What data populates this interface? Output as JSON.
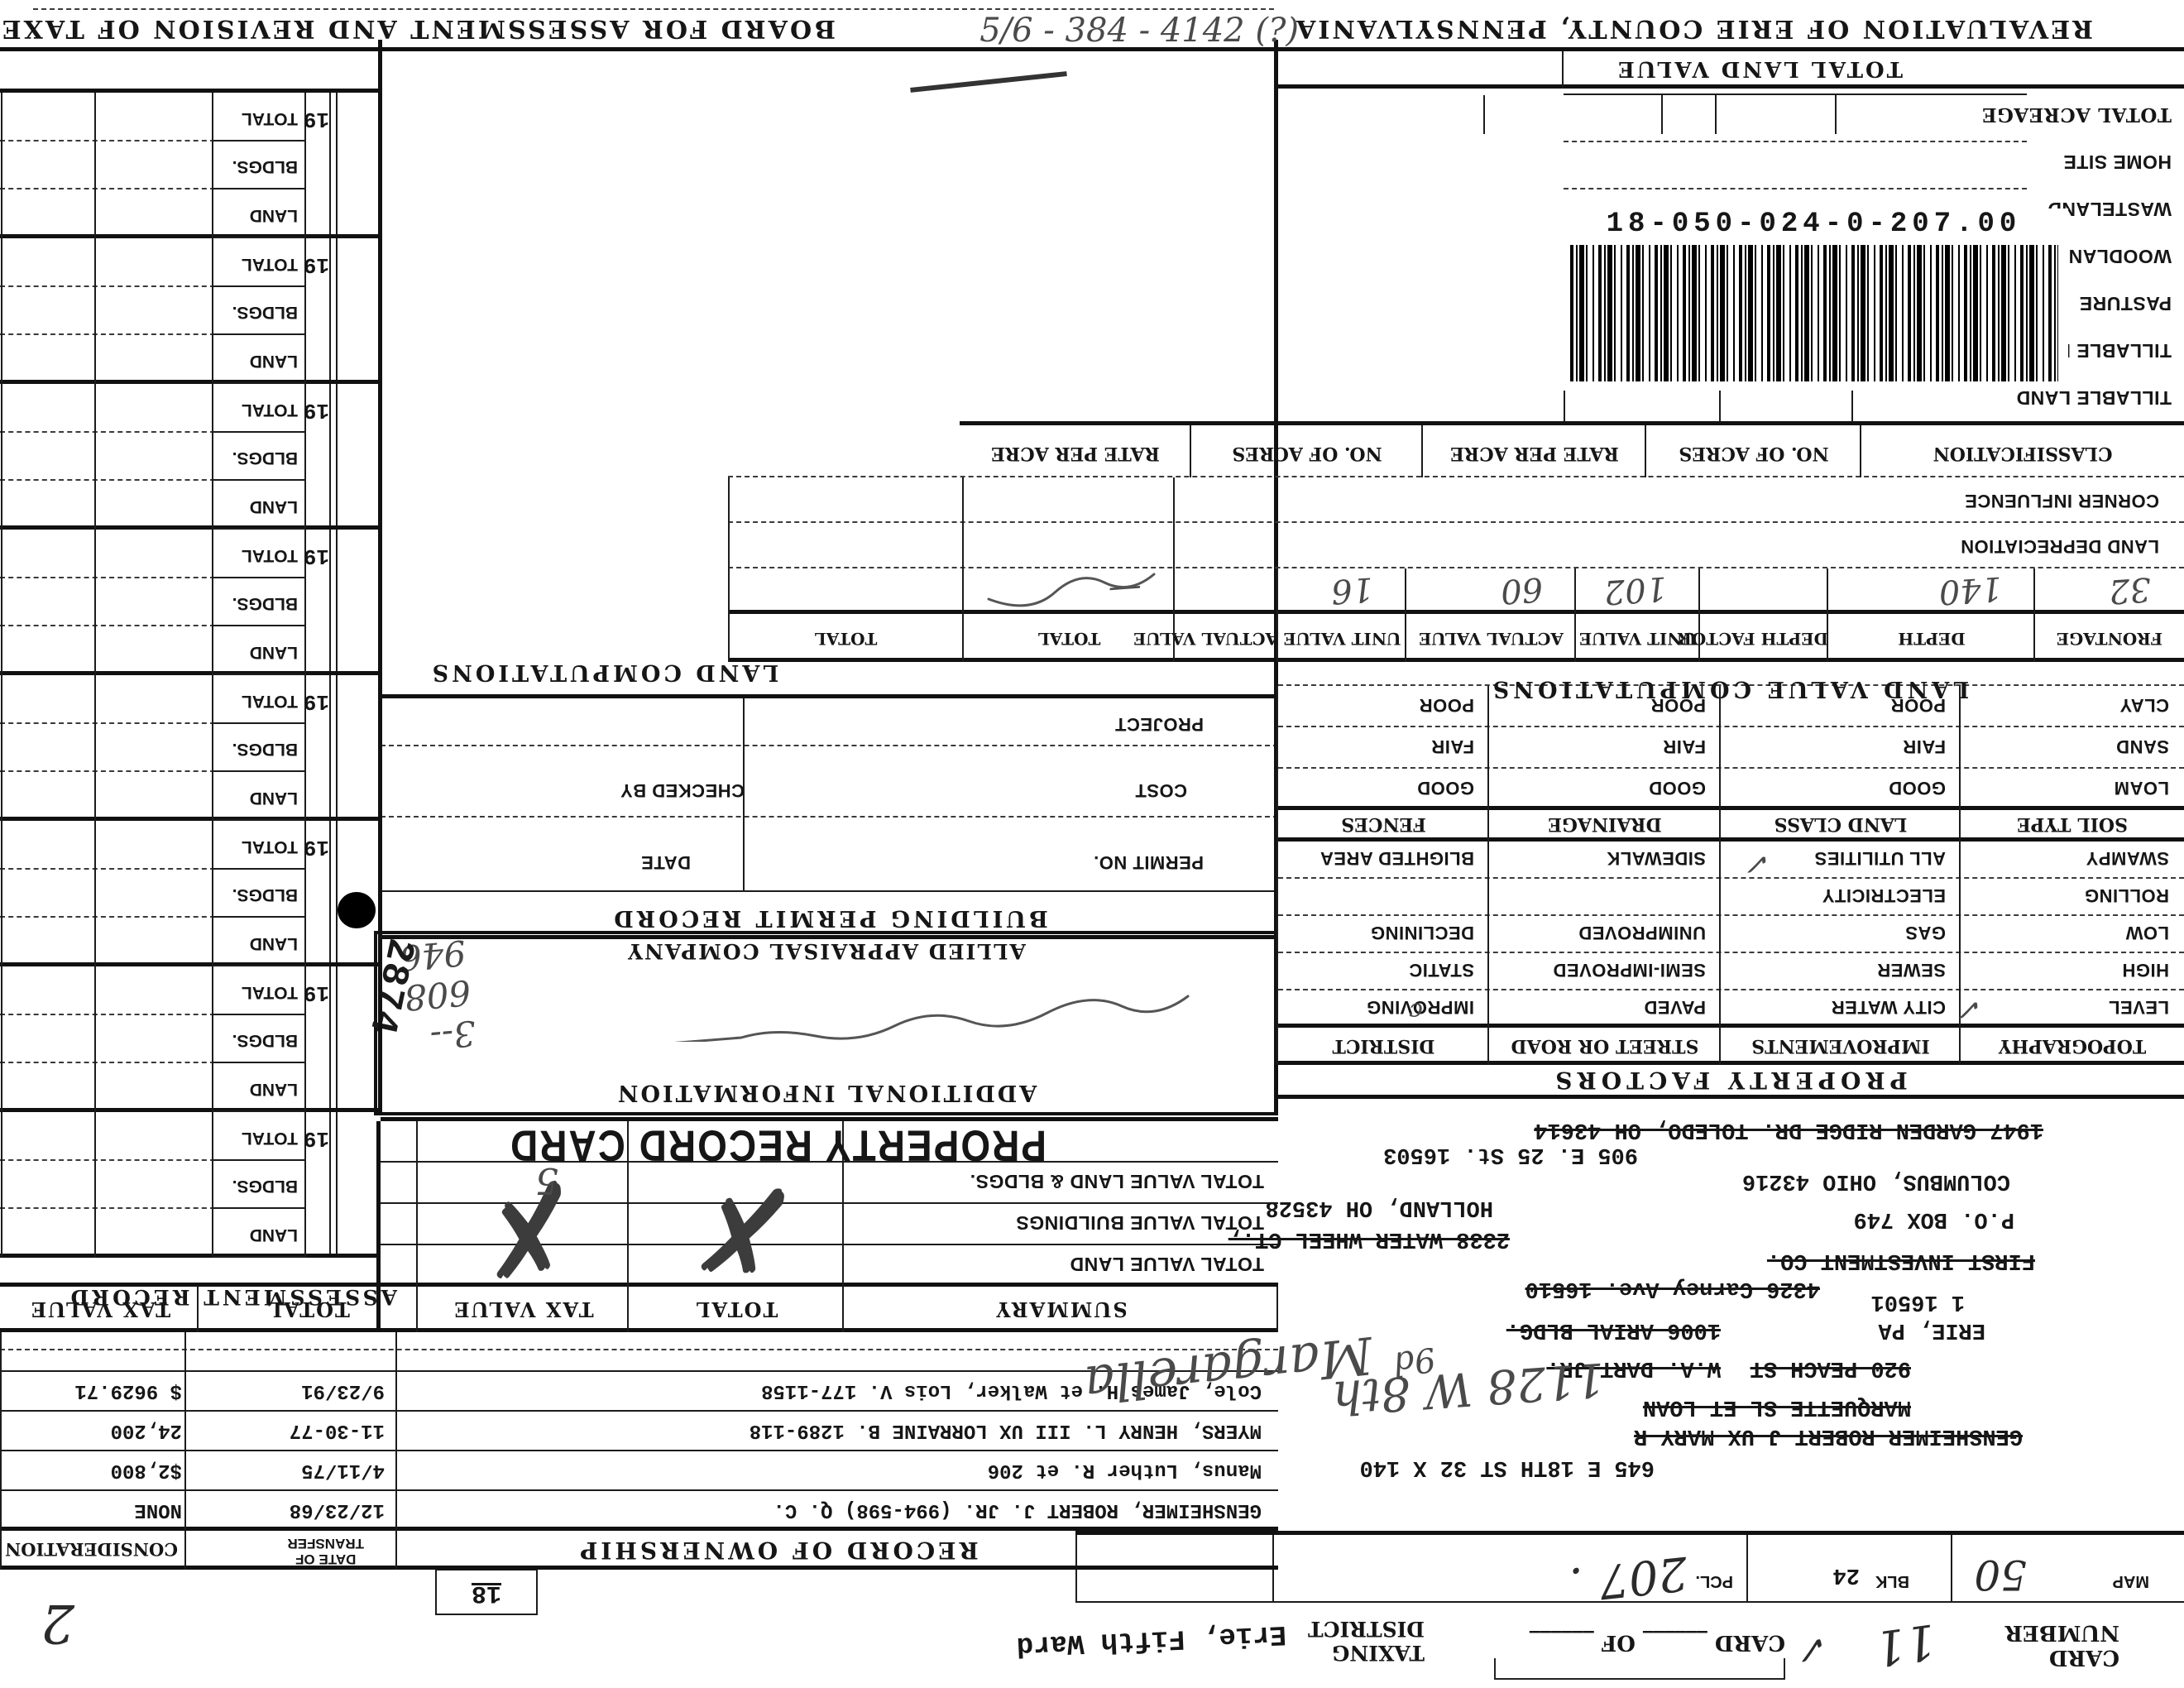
{
  "doc": {
    "bottom_left_title": "REVALUATION OF ERIE COUNTY, PENNSYLVANIA",
    "bottom_right_title": "BOARD FOR ASSESSMENT AND REVISION OF TAXES",
    "bottom_note_hand": "5/6 - 384 - 4142 (?)",
    "barcode_number": "18-050-024-0-207.00"
  },
  "top": {
    "card_number_line1": "CARD",
    "card_number_line2": "NUMBER",
    "card_number_value": "11",
    "card_number_check": "✓",
    "card_of_label": "CARD",
    "of_label": "OF",
    "taxing_line1": "TAXING",
    "taxing_line2": "DISTRICT",
    "ward_stamp": "Erie, Fifth Ward",
    "map_label": "MAP",
    "map_value": "50",
    "blk_label": "BLK",
    "blk_value": "24",
    "pcl_label": "PCL.",
    "pcl_value": "207",
    "box18": "18",
    "corner_hand": "2"
  },
  "owner_block": {
    "lines": [
      {
        "text": "645 E 18TH ST  32 X 140",
        "struck": false
      },
      {
        "text": "GENSHEIMER ROBERT J UX MARY R",
        "struck": true
      },
      {
        "text": "MARQUETTE SL ET LOAN",
        "struck": true
      },
      {
        "text": "920 PEACH ST",
        "struck": true
      },
      {
        "text": "W.A. DART JR.",
        "struck": true
      },
      {
        "text": "ERIE, PA",
        "struck": false
      },
      {
        "text": "1006 ARIAL BLDG.",
        "struck": true
      },
      {
        "text": "1  16501",
        "struck": false
      },
      {
        "text": "4326 Carney Ave. 16510",
        "struck": true
      },
      {
        "text": "FIRST INVESTMENT CO.",
        "struck": true
      },
      {
        "text": "P.O. BOX 749",
        "struck": false
      },
      {
        "text": "2338 WATER WHEEL CT.,",
        "struck": true
      },
      {
        "text": "HOLLAND, OH 43528",
        "struck": false
      },
      {
        "text": "COLUMBUS, OHIO 43216",
        "struck": false
      },
      {
        "text": "905 E. 25 St.  16503",
        "struck": false
      },
      {
        "text": "1947 GARDEN RIDGE DR. TOLEDO, OH 43614",
        "struck": true
      }
    ],
    "hand_notes": [
      "1128 W 8th",
      "Margarella",
      "9d"
    ]
  },
  "property_factors": {
    "title": "PROPERTY FACTORS",
    "headers": [
      "TOPOGRAPHY",
      "IMPROVEMENTS",
      "STREET OR ROAD",
      "DISTRICT"
    ],
    "rows": [
      [
        "LEVEL",
        "CITY WATER",
        "PAVED",
        "IMPROVING"
      ],
      [
        "HIGH",
        "SEWER",
        "SEMI-IMPROVED",
        "STATIC"
      ],
      [
        "LOW",
        "GAS",
        "UNIMPROVED",
        "DECLINING"
      ],
      [
        "ROLLING",
        "ELECTRICITY",
        "",
        ""
      ],
      [
        "SWAMPY",
        "ALL UTILITIES",
        "SIDEWALK",
        "BLIGHTED AREA"
      ]
    ],
    "soil_headers": [
      "SOIL TYPE",
      "LAND CLASS",
      "DRAINAGE",
      "FENCES"
    ],
    "soil_rows": [
      [
        "LOAM",
        "GOOD",
        "GOOD",
        "GOOD"
      ],
      [
        "SAND",
        "FAIR",
        "FAIR",
        "FAIR"
      ],
      [
        "CLAY",
        "POOR",
        "POOR",
        "POOR"
      ]
    ],
    "checks": [
      "✓",
      "✓",
      "c"
    ]
  },
  "land_values": {
    "title": "LAND VALUE COMPUTATIONS",
    "columns": [
      "FRONTAGE",
      "DEPTH",
      "DEPTH FACTOR",
      "UNIT VALUE",
      "ACTUAL VALUE",
      "UNIT VALUE",
      "ACTUAL VALUE",
      "TOTAL",
      "TOTAL"
    ],
    "hand_row": [
      "32",
      "140",
      "",
      "102",
      "60",
      "16",
      "",
      "—",
      ""
    ],
    "row_labels": [
      "LAND DEPRECIATION",
      "CORNER INFLUENCE"
    ],
    "classification": [
      "CLASSIFICATION",
      "NO. OF ACRES",
      "RATE PER ACRE",
      "NO. OF ACRES",
      "RATE PER ACRE"
    ]
  },
  "acreage": {
    "rows": [
      "TILLABLE LAND",
      "TILLABLE LANC",
      "PASTURE",
      "WOODLAND",
      "WASTELAND",
      "HOME SITE",
      "TOTAL ACREAGE"
    ],
    "total_land_value": "TOTAL LAND VALUE"
  },
  "middle": {
    "prc_title": "PROPERTY RECORD CARD",
    "additional_info": "ADDITIONAL INFORMATION",
    "allied": "ALLIED APPRAISAL COMPANY",
    "bpr_title": "BUILDING PERMIT RECORD",
    "permit_no": "PERMIT NO.",
    "date": "DATE",
    "cost": "COST",
    "checked_by": "CHECKED BY",
    "project": "PROJECT",
    "land_computations": "LAND COMPUTATIONS",
    "hand_numbers": [
      "3--",
      "608",
      "946"
    ],
    "stamp": "2874"
  },
  "assessment": {
    "title": "ASSESSMENT  RECORD",
    "year_prefix": "19",
    "row_labels": [
      "LAND",
      "BLDGS.",
      "TOTAL"
    ],
    "groups": 8
  },
  "summary": {
    "headers": [
      "SUMMARY",
      "TOTAL",
      "TAX VALUE",
      "TOTAL",
      "TAX VALUE"
    ],
    "rows": [
      "TOTAL VALUE LAND",
      "TOTAL VALUE BUILDINGS",
      "TOTAL VALUE LAND & BLDGS."
    ]
  },
  "ownership": {
    "header": "RECORD OF OWNERSHIP",
    "date_header_1": "DATE OF",
    "date_header_2": "TRANSFER",
    "consideration_header": "CONSIDERATION",
    "rows": [
      {
        "name": "GENSHEIMER, ROBERT J. JR.  (994-598) Q. C.",
        "date": "12/23/68",
        "consideration": "NONE"
      },
      {
        "name": "Manus, Luther R.  et 206",
        "date": "4/11/75",
        "consideration": "$2,800"
      },
      {
        "name": "MYERS, HENRY L. III UX LORRAINE B. 1289-118",
        "date": "11-30-77",
        "consideration": "24,200"
      },
      {
        "name": "Cole, James H. et Walker, Lois V.  177-1158",
        "date": "9/23/91",
        "consideration": "$ 9629.71"
      }
    ]
  }
}
